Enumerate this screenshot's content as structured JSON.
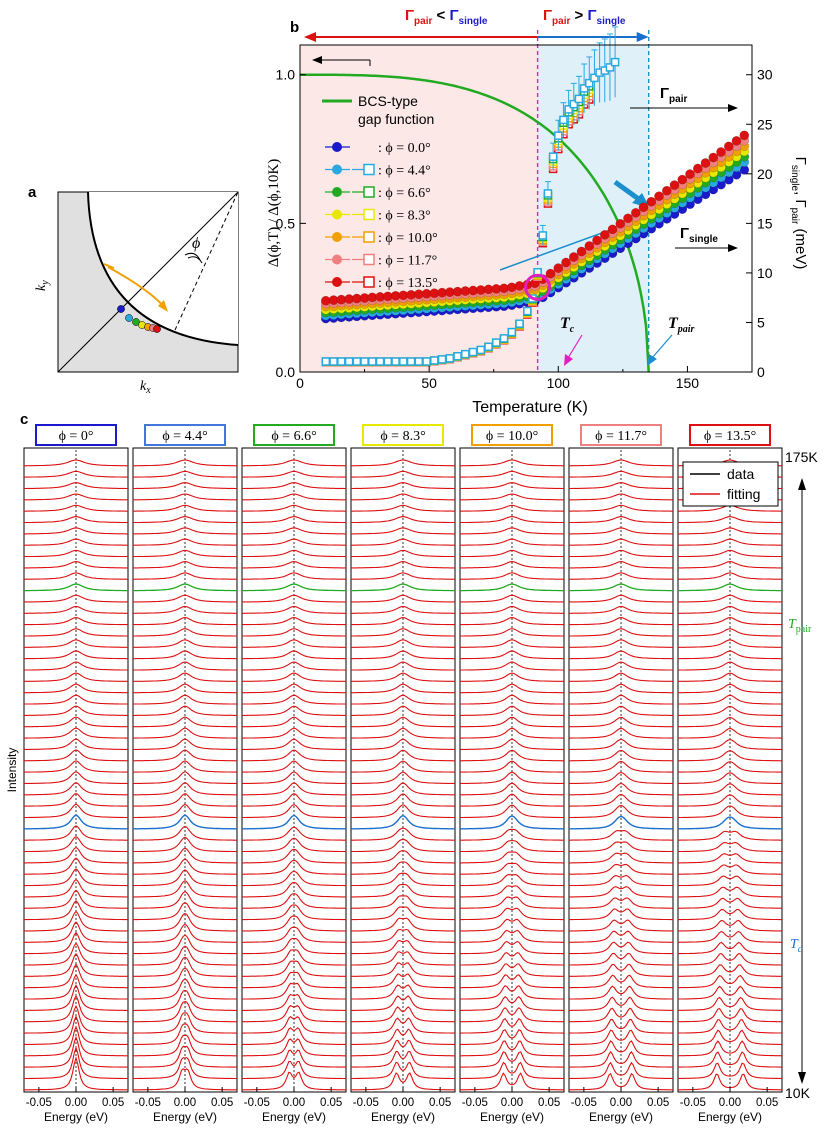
{
  "panels": {
    "a": "a",
    "b": "b",
    "c": "c"
  },
  "panel_a": {
    "xlabel": "k",
    "xlabel_sub": "x",
    "ylabel": "k",
    "ylabel_sub": "y",
    "angle_label": "ϕ",
    "colors": [
      "#1a1acc",
      "#2aa8e0",
      "#22aa22",
      "#e8e800",
      "#f0a000",
      "#f08080",
      "#dd1111"
    ]
  },
  "chart_data": [
    {
      "id": "b",
      "type": "scatter",
      "xlabel": "Temperature (K)",
      "ylabel": "Δ(ϕ,T) / Δ(ϕ,10K)",
      "y2label": "Γsingle, Γpair (meV)",
      "xlim": [
        0,
        175
      ],
      "ylim": [
        0,
        1.1
      ],
      "y2lim": [
        0,
        33
      ],
      "xticks": [
        0,
        50,
        100,
        150
      ],
      "yticks": [
        "0.0",
        "0.5",
        "1.0"
      ],
      "y2ticks": [
        0,
        5,
        10,
        15,
        20,
        25,
        30
      ],
      "grid": false,
      "legend_position": "top-left",
      "top_left_label": "Γpair < Γsingle",
      "top_right_label": "Γpair > Γsingle",
      "label_gamma_pair": "Γpair",
      "label_gamma_single": "Γsingle",
      "label_Tc": "Tc",
      "label_Tpair": "Tpair",
      "Tc": 92,
      "Tpair": 135,
      "bcs_label_line1": "BCS-type",
      "bcs_label_line2": "gap function",
      "series": [
        {
          "name": "ϕ = 0.0°",
          "legend": ": ϕ = 0.0°",
          "color": "#1a1acc",
          "gap_10K": 0.18,
          "gap_slope_high": 0.0055,
          "gamma_pair": false
        },
        {
          "name": "ϕ = 4.4°",
          "legend": ": ϕ = 4.4°",
          "color": "#2aa8e0",
          "gap_10K": 0.19,
          "gap_slope_high": 0.0057,
          "gamma_pair": true
        },
        {
          "name": "ϕ = 6.6°",
          "legend": ": ϕ = 6.6°",
          "color": "#22aa22",
          "gap_10K": 0.2,
          "gap_slope_high": 0.0058,
          "gamma_pair": true
        },
        {
          "name": "ϕ = 8.3°",
          "legend": ": ϕ = 8.3°",
          "color": "#e8e800",
          "gap_10K": 0.21,
          "gap_slope_high": 0.0059,
          "gamma_pair": true
        },
        {
          "name": "ϕ = 10.0°",
          "legend": ": ϕ = 10.0°",
          "color": "#f0a000",
          "gap_10K": 0.22,
          "gap_slope_high": 0.006,
          "gamma_pair": true
        },
        {
          "name": "ϕ = 11.7°",
          "legend": ": ϕ = 11.7°",
          "color": "#f08080",
          "gap_10K": 0.23,
          "gap_slope_high": 0.0061,
          "gamma_pair": true
        },
        {
          "name": "ϕ = 13.5°",
          "legend": ": ϕ = 13.5°",
          "color": "#dd1111",
          "gap_10K": 0.24,
          "gap_slope_high": 0.0062,
          "gamma_pair": true
        }
      ],
      "gamma_pair_blue_points": {
        "T": [
          10,
          13,
          16,
          19,
          22,
          25,
          28,
          31,
          34,
          37,
          40,
          43,
          46,
          49,
          52,
          55,
          58,
          61,
          64,
          67,
          70,
          73,
          76,
          79,
          82,
          85,
          88,
          90,
          92,
          94,
          96,
          98,
          100,
          102,
          104,
          106,
          108,
          110,
          112,
          114,
          116,
          118,
          120,
          122
        ],
        "gamma_meV": [
          1.0,
          1.0,
          1.0,
          1.0,
          1.0,
          1.0,
          1.0,
          1.0,
          1.0,
          1.0,
          1.0,
          1.0,
          1.0,
          1.0,
          1.1,
          1.2,
          1.3,
          1.5,
          1.7,
          1.9,
          2.1,
          2.4,
          2.8,
          3.2,
          3.8,
          4.6,
          5.8,
          7.0,
          9.5,
          13.0,
          17.0,
          20.5,
          22.5,
          24.0,
          25.0,
          25.5,
          26.0,
          27.0,
          27.5,
          28.0,
          28.5,
          28.7,
          29.0,
          29.5
        ]
      }
    },
    {
      "id": "c",
      "type": "line",
      "xlabel": "Energy (eV)",
      "ylabel": "Intensity",
      "xlim": [
        -0.07,
        0.07
      ],
      "xticks": [
        "-0.05",
        "0.00",
        "0.05"
      ],
      "n_spectra": 56,
      "top_label": "175K",
      "bottom_label": "10K",
      "label_Tpair": "Tpair",
      "label_Tc": "Tc",
      "legend_data": "data",
      "legend_fitting": "fitting",
      "panels": [
        {
          "title": "ϕ = 0°",
          "color": "#1a1acc",
          "gap": 0.0
        },
        {
          "title": "ϕ = 4.4°",
          "color": "#4477dd",
          "gap": 0.0015
        },
        {
          "title": "ϕ = 6.6°",
          "color": "#22aa22",
          "gap": 0.0025
        },
        {
          "title": "ϕ = 8.3°",
          "color": "#e8e800",
          "gap": 0.0035
        },
        {
          "title": "ϕ = 10.0°",
          "color": "#f0a000",
          "gap": 0.0045
        },
        {
          "title": "ϕ = 11.7°",
          "color": "#f08080",
          "gap": 0.0058
        },
        {
          "title": "ϕ = 13.5°",
          "color": "#dd1111",
          "gap": 0.007
        }
      ]
    }
  ]
}
